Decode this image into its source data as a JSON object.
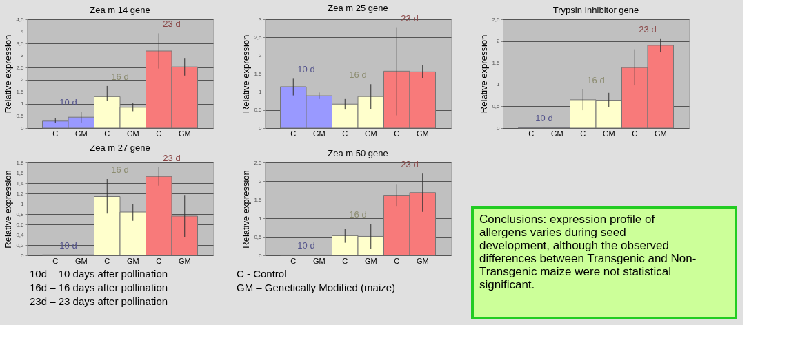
{
  "chart_data": [
    {
      "type": "bar",
      "title": "Zea m 14 gene",
      "ylabel": "Relative expression",
      "categories": [
        "C",
        "GM",
        "C",
        "GM",
        "C",
        "GM"
      ],
      "values": [
        0.29,
        0.45,
        1.3,
        0.86,
        3.19,
        2.53
      ],
      "errors": [
        [
          0.2,
          0.4
        ],
        [
          0.23,
          0.67
        ],
        [
          1.12,
          1.74
        ],
        [
          0.7,
          1.04
        ],
        [
          2.46,
          3.92
        ],
        [
          2.17,
          2.9
        ]
      ],
      "colors": [
        "#9999ff",
        "#9999ff",
        "#ffffcc",
        "#ffffcc",
        "#f87a7a",
        "#f87a7a"
      ],
      "ylim": [
        0,
        4.5
      ],
      "yticks": [
        0,
        {
          "value": 0.5,
          "label": "0,5"
        },
        1,
        {
          "value": 1.5,
          "label": "1,5"
        },
        2,
        {
          "value": 2.5,
          "label": "2,5"
        },
        3,
        {
          "value": 3.5,
          "label": "3,5"
        },
        4,
        {
          "value": 4.5,
          "label": "4,5"
        }
      ],
      "grid": "y",
      "annotations": [
        "10 d",
        "16 d",
        "23 d"
      ]
    },
    {
      "type": "bar",
      "title": "Zea m 25 gene",
      "ylabel": "Relative expression",
      "categories": [
        "C",
        "GM",
        "C",
        "GM",
        "C",
        "GM"
      ],
      "values": [
        1.14,
        0.89,
        0.66,
        0.87,
        1.57,
        1.55
      ],
      "errors": [
        [
          0.9,
          1.36
        ],
        [
          0.8,
          0.98
        ],
        [
          0.51,
          0.8
        ],
        [
          0.53,
          1.21
        ],
        [
          0.35,
          2.78
        ],
        [
          1.37,
          1.74
        ]
      ],
      "colors": [
        "#9999ff",
        "#9999ff",
        "#ffffcc",
        "#ffffcc",
        "#f87a7a",
        "#f87a7a"
      ],
      "ylim": [
        0,
        3
      ],
      "yticks": [
        0,
        {
          "value": 0.5,
          "label": "0,5"
        },
        1,
        {
          "value": 1.5,
          "label": "1,5"
        },
        2,
        {
          "value": 2.5,
          "label": "2,5"
        },
        3
      ],
      "grid": "y",
      "annotations": [
        "10 d",
        "16 d",
        "23 d"
      ]
    },
    {
      "type": "bar",
      "title": "Trypsin Inhibitor gene",
      "ylabel": "Relative expression",
      "categories": [
        "C",
        "GM",
        "C",
        "GM",
        "C",
        "GM"
      ],
      "values": [
        0.01,
        0.01,
        0.65,
        0.64,
        1.39,
        1.9
      ],
      "errors": [
        null,
        null,
        [
          0.41,
          0.89
        ],
        [
          0.48,
          0.81
        ],
        [
          0.98,
          1.81
        ],
        [
          1.74,
          2.06
        ]
      ],
      "colors": [
        "#9999ff",
        "#9999ff",
        "#ffffcc",
        "#ffffcc",
        "#f87a7a",
        "#f87a7a"
      ],
      "ylim": [
        0,
        2.5
      ],
      "yticks": [
        0,
        {
          "value": 0.5,
          "label": "0,5"
        },
        1,
        {
          "value": 1.5,
          "label": "1,5"
        },
        2,
        {
          "value": 2.5,
          "label": "2,5"
        }
      ],
      "grid": "y",
      "annotations": [
        "10 d",
        "16 d",
        "23 d"
      ]
    },
    {
      "type": "bar",
      "title": "Zea m 27 gene",
      "ylabel": "Relative expression",
      "categories": [
        "C",
        "GM",
        "C",
        "GM",
        "C",
        "GM"
      ],
      "values": [
        0.01,
        0.01,
        1.14,
        0.84,
        1.53,
        0.76
      ],
      "errors": [
        null,
        null,
        [
          0.81,
          1.48
        ],
        [
          0.67,
          1.0
        ],
        [
          1.35,
          1.71
        ],
        [
          0.36,
          1.17
        ]
      ],
      "colors": [
        "#9999ff",
        "#9999ff",
        "#ffffcc",
        "#ffffcc",
        "#f87a7a",
        "#f87a7a"
      ],
      "ylim": [
        0,
        1.8
      ],
      "yticks": [
        0,
        {
          "value": 0.2,
          "label": "0,2"
        },
        {
          "value": 0.4,
          "label": "0,4"
        },
        {
          "value": 0.6,
          "label": "0,6"
        },
        {
          "value": 0.8,
          "label": "0,8"
        },
        1,
        {
          "value": 1.2,
          "label": "1,2"
        },
        {
          "value": 1.4,
          "label": "1,4"
        },
        {
          "value": 1.6,
          "label": "1,6"
        },
        {
          "value": 1.8,
          "label": "1,8"
        }
      ],
      "grid": "y",
      "annotations": [
        "10 d",
        "16 d",
        "23 d"
      ]
    },
    {
      "type": "bar",
      "title": "Zea m 50 gene",
      "ylabel": "Relative expression",
      "categories": [
        "C",
        "GM",
        "C",
        "GM",
        "C",
        "GM"
      ],
      "values": [
        0.01,
        0.01,
        0.53,
        0.51,
        1.62,
        1.69
      ],
      "errors": [
        null,
        null,
        [
          0.34,
          0.72
        ],
        [
          0.17,
          0.85
        ],
        [
          1.33,
          1.92
        ],
        [
          1.17,
          2.2
        ]
      ],
      "colors": [
        "#9999ff",
        "#9999ff",
        "#ffffcc",
        "#ffffcc",
        "#f87a7a",
        "#f87a7a"
      ],
      "ylim": [
        0,
        2.5
      ],
      "yticks": [
        0,
        {
          "value": 0.5,
          "label": "0,5"
        },
        1,
        {
          "value": 1.5,
          "label": "1,5"
        },
        2,
        {
          "value": 2.5,
          "label": "2,5"
        }
      ],
      "grid": "y",
      "annotations": [
        "10 d",
        "16 d",
        "23 d"
      ]
    },
    {
      "type": "other",
      "annotations": [
        "10d – 10 days after pollination",
        "16d – 16 days after pollination",
        "23d – 23 days after pollination",
        "C - Control",
        "GM – Genetically Modified (maize)"
      ]
    },
    {
      "type": "other",
      "annotations": [
        "Conclusions: expression profile of allergens varies during seed development, although the observed differences between Transgenic and Non-Transgenic maize were not statistical significant."
      ]
    }
  ]
}
